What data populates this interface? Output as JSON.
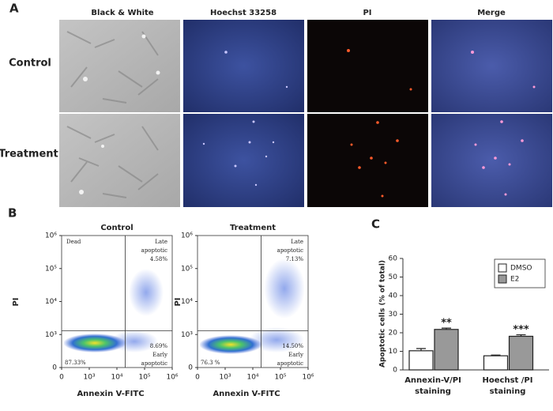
{
  "panel_a": {
    "label": "A",
    "columns": [
      "Black & White",
      "Hoechst 33258",
      "PI",
      "Merge"
    ],
    "rows": [
      "Control",
      "Treatment"
    ]
  },
  "panel_b": {
    "label": "B",
    "y_label": "PI",
    "x_label": "Annexin V-FITC",
    "xlim": [
      0,
      1000000
    ],
    "ylim": [
      0,
      1000000
    ],
    "xticks": [
      0,
      {
        "value": 1000,
        "label": "10³"
      },
      {
        "value": 10000,
        "label": "10⁴"
      },
      {
        "value": 100000,
        "label": "10⁵"
      },
      {
        "value": 1000000,
        "label": "10⁶"
      }
    ],
    "yticks": [
      0,
      {
        "value": 1000,
        "label": "10³"
      },
      {
        "value": 10000,
        "label": "10⁴"
      },
      {
        "value": 100000,
        "label": "10⁵"
      },
      {
        "value": 1000000,
        "label": "10⁶"
      }
    ],
    "quadrant_gate": {
      "x": 20000,
      "y": 1300
    },
    "plots": [
      {
        "title": "Control",
        "dead": "Dead",
        "late": [
          "Late",
          "apoptotic",
          "4.58%"
        ],
        "early": [
          "8.69%",
          "Early",
          "apoptotic"
        ],
        "live": "87.33%"
      },
      {
        "title": "Treatment",
        "late": [
          "Late",
          "apoptotic",
          "7.13%"
        ],
        "early": [
          "14.50%",
          "Early",
          "apoptotic"
        ],
        "live": "76.3 %"
      }
    ]
  },
  "chart_data": {
    "type": "bar",
    "panel_label": "C",
    "y_label": "Apoptotic cells (% of total)",
    "categories": [
      [
        "Annexin-V/PI",
        "staining"
      ],
      [
        "Hoechst /PI",
        "staining"
      ]
    ],
    "series": [
      {
        "name": "DMSO",
        "color": "#ffffff",
        "values": [
          10.3,
          7.6
        ],
        "errors": [
          1.2,
          0.4
        ]
      },
      {
        "name": "E2",
        "color": "#999999",
        "values": [
          21.8,
          18.1
        ],
        "errors": [
          0.7,
          0.8
        ],
        "value_labels": [
          "**",
          "***"
        ]
      }
    ],
    "ylim": [
      0,
      60
    ],
    "yticks": [
      0,
      10,
      20,
      30,
      40,
      50,
      60
    ],
    "legend": "upper right"
  }
}
